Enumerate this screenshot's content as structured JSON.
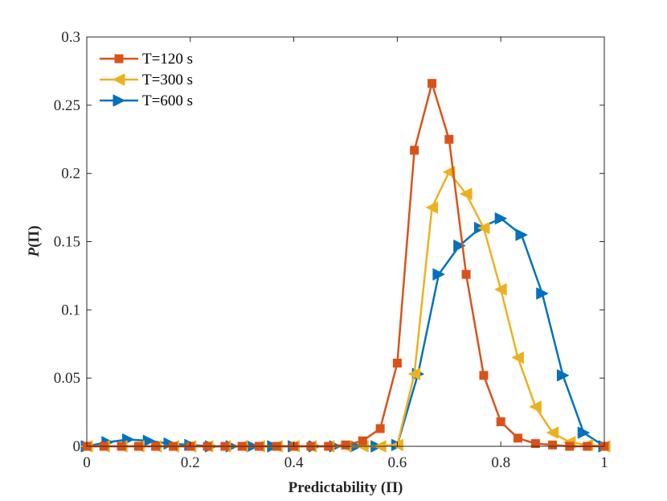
{
  "chart_data": {
    "type": "line",
    "title": "",
    "xlabel": "Predictability (Π)",
    "ylabel_main": "P",
    "ylabel_paren": "(Π)",
    "xlim": [
      0,
      1
    ],
    "ylim": [
      0,
      0.3
    ],
    "grid": false,
    "legend_position": "top-left",
    "x_ticks": [
      0,
      0.2,
      0.4,
      0.6,
      0.8,
      1
    ],
    "x_tick_labels": [
      "0",
      "0.2",
      "0.4",
      "0.6",
      "0.8",
      "1"
    ],
    "y_ticks": [
      0,
      0.05,
      0.1,
      0.15,
      0.2,
      0.25,
      0.3
    ],
    "y_tick_labels": [
      "0",
      "0.05",
      "0.1",
      "0.15",
      "0.2",
      "0.25",
      "0.3"
    ],
    "series": [
      {
        "name": "T=120 s",
        "color": "#D95319",
        "marker": "square",
        "x": [
          0,
          0.033,
          0.067,
          0.1,
          0.133,
          0.167,
          0.2,
          0.233,
          0.267,
          0.3,
          0.333,
          0.367,
          0.4,
          0.433,
          0.467,
          0.5,
          0.533,
          0.567,
          0.6,
          0.633,
          0.667,
          0.7,
          0.733,
          0.767,
          0.8,
          0.833,
          0.867,
          0.9,
          0.933,
          0.967,
          1
        ],
        "y": [
          0,
          0,
          0,
          0,
          0,
          0,
          0,
          0,
          0,
          0,
          0,
          0,
          0,
          0,
          0,
          0.001,
          0.004,
          0.013,
          0.061,
          0.217,
          0.266,
          0.225,
          0.126,
          0.052,
          0.018,
          0.006,
          0.002,
          0.001,
          0,
          0,
          0
        ]
      },
      {
        "name": "T=300 s",
        "color": "#EDB120",
        "marker": "triangle-left",
        "x": [
          0,
          0.033,
          0.067,
          0.1,
          0.133,
          0.167,
          0.2,
          0.233,
          0.267,
          0.3,
          0.333,
          0.367,
          0.4,
          0.433,
          0.467,
          0.5,
          0.533,
          0.567,
          0.6,
          0.633,
          0.667,
          0.7,
          0.733,
          0.767,
          0.8,
          0.833,
          0.867,
          0.9,
          0.933,
          0.967,
          1
        ],
        "y": [
          0,
          0,
          0,
          0,
          0,
          0,
          0,
          0,
          0,
          0,
          0,
          0,
          0,
          0,
          0,
          0,
          0,
          0,
          0.001,
          0.053,
          0.175,
          0.201,
          0.185,
          0.16,
          0.115,
          0.065,
          0.029,
          0.01,
          0.003,
          0.001,
          0
        ]
      },
      {
        "name": "T=600 s",
        "color": "#0072BD",
        "marker": "triangle-right",
        "x": [
          0,
          0.04,
          0.08,
          0.12,
          0.16,
          0.2,
          0.24,
          0.28,
          0.32,
          0.36,
          0.4,
          0.44,
          0.48,
          0.52,
          0.56,
          0.6,
          0.64,
          0.68,
          0.72,
          0.76,
          0.8,
          0.84,
          0.88,
          0.92,
          0.96,
          1
        ],
        "y": [
          0,
          0.003,
          0.005,
          0.004,
          0.002,
          0.001,
          0,
          0,
          0,
          0,
          0,
          0,
          0,
          0,
          0,
          0.001,
          0.053,
          0.126,
          0.147,
          0.16,
          0.167,
          0.155,
          0.112,
          0.052,
          0.01,
          0
        ]
      }
    ]
  }
}
